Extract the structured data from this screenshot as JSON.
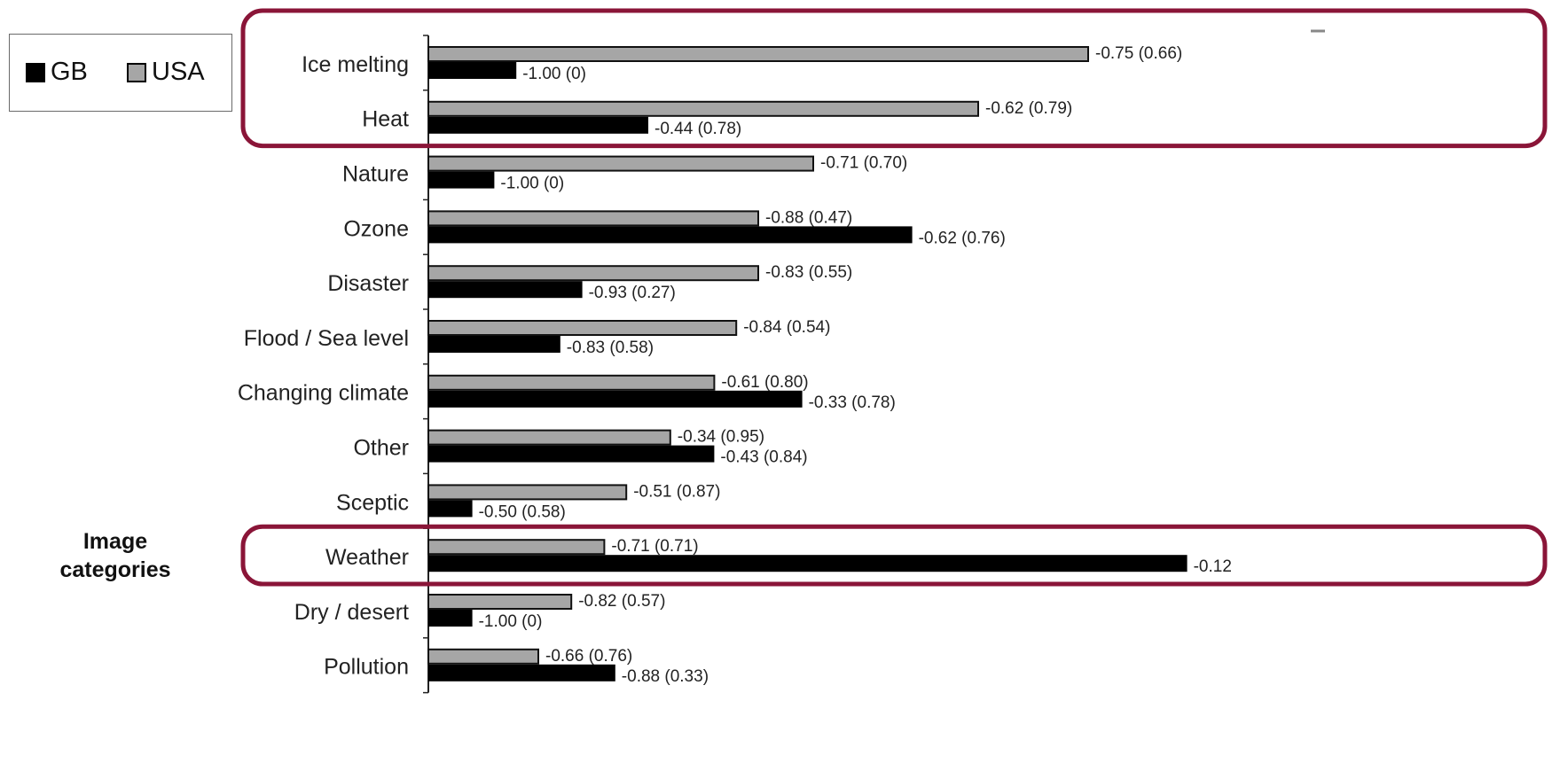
{
  "chart_data": {
    "type": "bar",
    "orientation": "horizontal",
    "title": "",
    "xlabel": "",
    "ylabel": "Image categories",
    "categories": [
      "Ice melting",
      "Heat",
      "Nature",
      "Ozone",
      "Disaster",
      "Flood / Sea level",
      "Changing climate",
      "Other",
      "Sceptic",
      "Weather",
      "Dry / desert",
      "Pollution"
    ],
    "series": [
      {
        "name": "USA",
        "color": "#a6a6a6",
        "values": [
          -0.75,
          -0.62,
          -0.71,
          -0.88,
          -0.83,
          -0.84,
          -0.61,
          -0.34,
          -0.51,
          -0.71,
          -0.82,
          -0.66
        ],
        "labels": [
          "-0.75 (0.66)",
          "-0.62 (0.79)",
          "-0.71 (0.70)",
          "-0.88 (0.47)",
          "-0.83 (0.55)",
          "-0.84 (0.54)",
          "-0.61 (0.80)",
          "-0.34 (0.95)",
          "-0.51 (0.87)",
          "-0.71 (0.71)",
          "-0.82 (0.57)",
          "-0.66 (0.76)"
        ],
        "bar_extent": [
          0.6,
          0.5,
          0.35,
          0.3,
          0.3,
          0.28,
          0.26,
          0.22,
          0.18,
          0.16,
          0.13,
          0.1
        ]
      },
      {
        "name": "GB",
        "color": "#000000",
        "values": [
          -1.0,
          -0.44,
          -1.0,
          -0.62,
          -0.93,
          -0.83,
          -0.33,
          -0.43,
          -0.5,
          -0.12,
          -1.0,
          -0.88
        ],
        "labels": [
          "-1.00 (0)",
          "-0.44 (0.78)",
          "-1.00 (0)",
          "-0.62 (0.76)",
          "-0.93 (0.27)",
          "-0.83 (0.58)",
          "-0.33 (0.78)",
          "-0.43 (0.84)",
          "-0.50 (0.58)",
          "-0.12",
          "-1.00 (0)",
          "-0.88 (0.33)"
        ],
        "bar_extent": [
          0.08,
          0.2,
          0.06,
          0.44,
          0.14,
          0.12,
          0.34,
          0.26,
          0.04,
          0.69,
          0.04,
          0.17
        ]
      }
    ],
    "legend": [
      "GB",
      "USA"
    ],
    "legend_position": "top-left",
    "highlighted_categories": [
      "Ice melting",
      "Heat",
      "Weather"
    ],
    "highlight_color": "#8a1538",
    "grid": false
  }
}
